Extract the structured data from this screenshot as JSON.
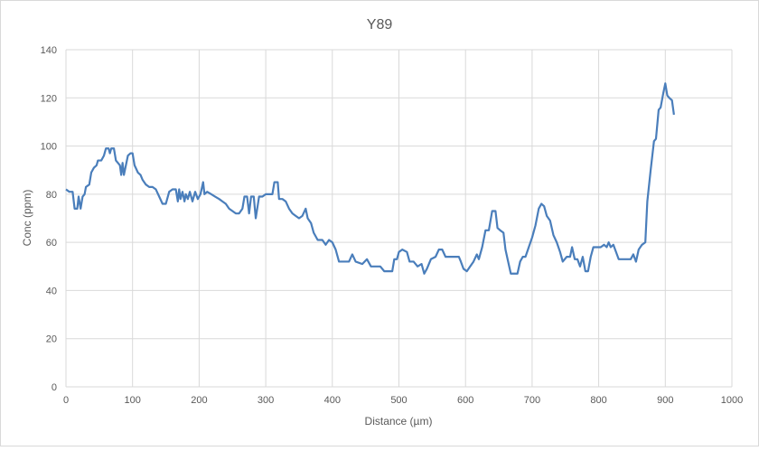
{
  "chart_data": {
    "type": "line",
    "title": "Y89",
    "x_label": "Distance (µm)",
    "y_label": "Conc (ppm)",
    "xlim": [
      0,
      1000
    ],
    "xticks": [
      0,
      100,
      200,
      300,
      400,
      500,
      600,
      700,
      800,
      900,
      1000
    ],
    "ylim": [
      0,
      140
    ],
    "yticks": [
      0,
      20,
      40,
      60,
      80,
      100,
      120,
      140
    ],
    "grid": true,
    "series": [
      {
        "name": "Y89",
        "color": "#4a7ebb",
        "x": [
          0,
          5,
          10,
          13,
          17,
          19,
          22,
          25,
          28,
          30,
          35,
          38,
          42,
          46,
          48,
          53,
          57,
          60,
          64,
          66,
          68,
          72,
          75,
          78,
          81,
          83,
          85,
          87,
          90,
          93,
          97,
          100,
          103,
          108,
          112,
          115,
          120,
          125,
          130,
          135,
          140,
          145,
          150,
          155,
          160,
          165,
          168,
          170,
          172,
          175,
          178,
          180,
          183,
          186,
          190,
          194,
          198,
          202,
          206,
          208,
          212,
          218,
          224,
          230,
          235,
          240,
          245,
          250,
          255,
          260,
          265,
          268,
          272,
          275,
          278,
          282,
          285,
          290,
          295,
          300,
          305,
          310,
          313,
          318,
          320,
          325,
          330,
          335,
          340,
          345,
          350,
          355,
          360,
          363,
          368,
          372,
          378,
          385,
          390,
          395,
          400,
          405,
          410,
          418,
          425,
          430,
          435,
          445,
          452,
          458,
          465,
          472,
          478,
          485,
          490,
          493,
          497,
          500,
          505,
          512,
          516,
          522,
          528,
          534,
          538,
          542,
          548,
          555,
          560,
          565,
          570,
          578,
          585,
          590,
          593,
          597,
          602,
          607,
          612,
          617,
          620,
          625,
          630,
          635,
          640,
          645,
          648,
          652,
          657,
          660,
          664,
          668,
          673,
          678,
          682,
          686,
          690,
          695,
          700,
          705,
          710,
          714,
          718,
          722,
          727,
          732,
          737,
          742,
          746,
          752,
          757,
          760,
          764,
          768,
          772,
          776,
          780,
          784,
          788,
          792,
          798,
          803,
          808,
          812,
          815,
          818,
          822,
          826,
          830,
          836,
          842,
          848,
          852,
          856,
          860,
          865,
          870,
          873,
          878,
          883,
          886,
          890,
          893,
          897,
          900,
          903,
          906,
          910,
          913
        ],
        "values": [
          82,
          81,
          81,
          74,
          74,
          79,
          74,
          79,
          80,
          83,
          84,
          89,
          91,
          92,
          94,
          94,
          96,
          99,
          99,
          97,
          99,
          99,
          94,
          93,
          92,
          88,
          93,
          88,
          92,
          96,
          97,
          97,
          92,
          89,
          88,
          86,
          84,
          83,
          83,
          82,
          79,
          76,
          76,
          81,
          82,
          82,
          77,
          82,
          78,
          81,
          77,
          80,
          78,
          81,
          77,
          81,
          78,
          80,
          85,
          80,
          81,
          80,
          79,
          78,
          77,
          76,
          74,
          73,
          72,
          72,
          74,
          79,
          79,
          72,
          79,
          79,
          70,
          79,
          79,
          80,
          80,
          80,
          85,
          85,
          78,
          78,
          77,
          74,
          72,
          71,
          70,
          71,
          74,
          70,
          68,
          64,
          61,
          61,
          59,
          61,
          60,
          57,
          52,
          52,
          52,
          55,
          52,
          51,
          53,
          50,
          50,
          50,
          48,
          48,
          48,
          53,
          53,
          56,
          57,
          56,
          52,
          52,
          50,
          51,
          47,
          49,
          53,
          54,
          57,
          57,
          54,
          54,
          54,
          54,
          52,
          49,
          48,
          50,
          52,
          55,
          53,
          58,
          65,
          65,
          73,
          73,
          66,
          65,
          64,
          57,
          52,
          47,
          47,
          47,
          52,
          54,
          54,
          58,
          62,
          67,
          74,
          76,
          75,
          71,
          69,
          63,
          60,
          56,
          52,
          54,
          54,
          58,
          53,
          53,
          50,
          54,
          48,
          48,
          54,
          58,
          58,
          58,
          59,
          58,
          60,
          58,
          59,
          56,
          53,
          53,
          53,
          53,
          55,
          52,
          57,
          59,
          60,
          77,
          90,
          102,
          103,
          115,
          116,
          122,
          126,
          121,
          120,
          119,
          113
        ]
      }
    ]
  }
}
